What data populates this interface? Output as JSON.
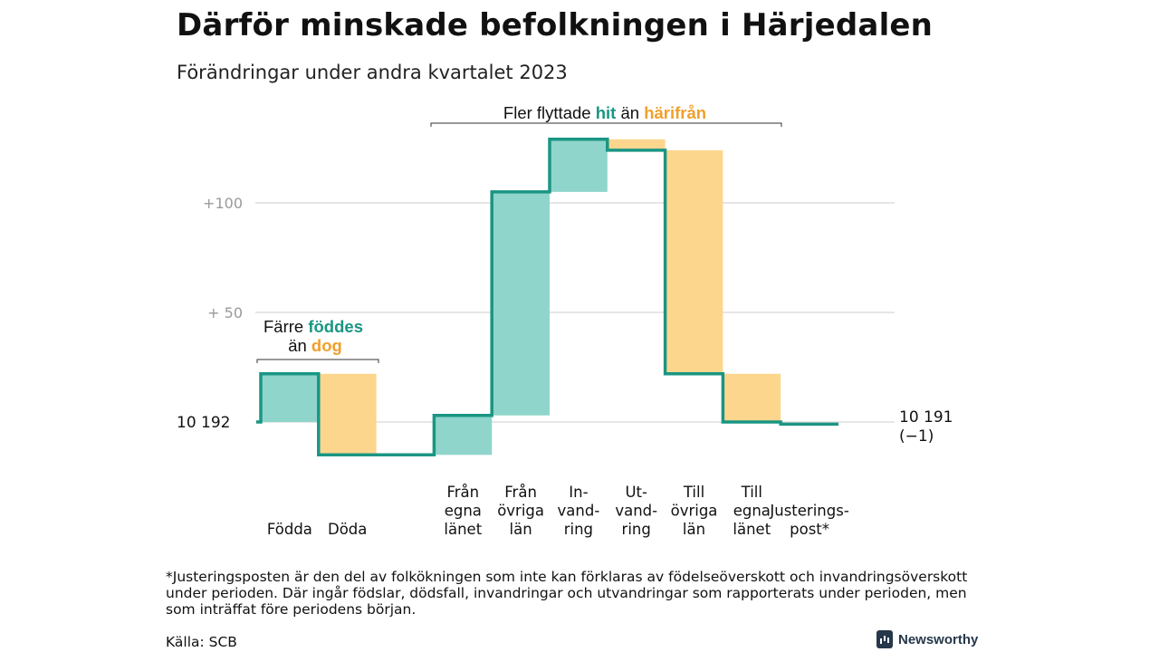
{
  "title": "Därför minskade befolkningen i Härjedalen",
  "subtitle": "Förändringar under andra kvartalet 2023",
  "chart_data": {
    "type": "waterfall",
    "baseline": 10192,
    "start_label": "10  192",
    "end_label_line1": "10 191",
    "end_label_line2": "(−1)",
    "y_ticks": [
      {
        "value": 100,
        "label": "+100"
      },
      {
        "value": 50,
        "label": "+  50"
      }
    ],
    "ylim": [
      -25,
      135
    ],
    "steps": [
      {
        "lines": [
          "Födda"
        ],
        "change": 22,
        "kind": "in"
      },
      {
        "lines": [
          "Döda"
        ],
        "change": -37,
        "kind": "out"
      },
      {
        "lines": [],
        "change": 0,
        "kind": "gap"
      },
      {
        "lines": [
          "Från",
          "egna",
          "länet"
        ],
        "change": 18,
        "kind": "in"
      },
      {
        "lines": [
          "Från",
          "övriga",
          "län"
        ],
        "change": 102,
        "kind": "in"
      },
      {
        "lines": [
          "In-",
          "vand-",
          "ring"
        ],
        "change": 24,
        "kind": "in"
      },
      {
        "lines": [
          "Ut-",
          "vand-",
          "ring"
        ],
        "change": -5,
        "kind": "out"
      },
      {
        "lines": [
          "Till",
          "övriga",
          "län"
        ],
        "change": -102,
        "kind": "out"
      },
      {
        "lines": [
          "Till",
          "egna",
          "länet"
        ],
        "change": -22,
        "kind": "out"
      },
      {
        "lines": [
          "Justerings-",
          "post*"
        ],
        "change": -1,
        "kind": "adj"
      }
    ],
    "annotations": {
      "births": {
        "prefix": "Färre",
        "in_word": "föddes",
        "joiner": "än",
        "out_word": "dog"
      },
      "migration": {
        "prefix": "Fler flyttade",
        "in_word": "hit",
        "joiner": "än",
        "out_word": "härifrån"
      }
    },
    "colors": {
      "in_fill": "#8fd5cb",
      "out_fill": "#fdd68e",
      "line": "#1a9683",
      "in_text": "#1a9683",
      "out_text": "#f0a02a",
      "grid": "#dddddd",
      "tick_text": "#999999"
    }
  },
  "footnote": "*Justeringsposten är den del av folkökningen som inte kan förklaras av födelseöverskott och invandringsöverskott under perioden. Där ingår födslar, dödsfall, invandringar och utvandringar som rapporterats under perioden, men som inträffat före periodens början.",
  "source": "Källa: SCB",
  "brand": "Newsworthy"
}
